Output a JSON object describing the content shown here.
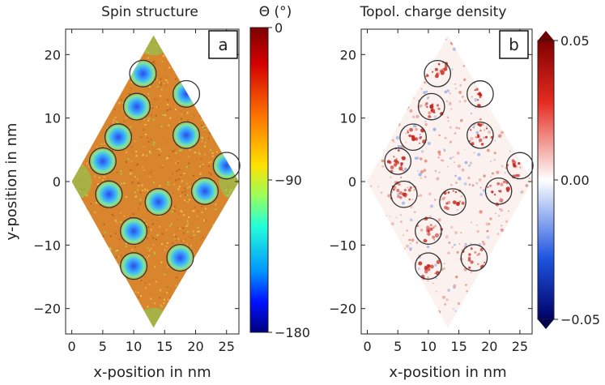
{
  "chart_data": [
    {
      "type": "heatmap",
      "panel_label": "a",
      "title": "Spin structure",
      "colorbar_title": "Θ (°)",
      "xlabel": "x-position in nm",
      "ylabel": "y-position in nm",
      "xlim": [
        -1,
        27
      ],
      "ylim": [
        -24,
        24
      ],
      "xticks": [
        0,
        5,
        10,
        15,
        20,
        25
      ],
      "yticks": [
        -20,
        -10,
        0,
        10,
        20
      ],
      "colorbar": {
        "min": -180,
        "max": 0,
        "ticks": [
          0,
          -90,
          -180
        ],
        "tick_labels": [
          "0",
          "−90",
          "−180"
        ],
        "colormap": "jet"
      },
      "rhombus_vertices": [
        [
          13.2,
          23
        ],
        [
          27,
          0
        ],
        [
          13.2,
          -23
        ],
        [
          0,
          0
        ]
      ],
      "skyrmion_centers": [
        [
          11.5,
          17
        ],
        [
          18.5,
          13.8
        ],
        [
          10.5,
          11.8
        ],
        [
          7.5,
          7
        ],
        [
          18.5,
          7.3
        ],
        [
          5,
          3.2
        ],
        [
          25,
          2.5
        ],
        [
          6,
          -2
        ],
        [
          14,
          -3.2
        ],
        [
          21.5,
          -1.5
        ],
        [
          10,
          -7.8
        ],
        [
          17.5,
          -12
        ],
        [
          10,
          -13.3
        ]
      ],
      "background_value": -45,
      "core_value": -170
    },
    {
      "type": "heatmap",
      "panel_label": "b",
      "title": "Topol. charge density",
      "xlabel": "x-position in nm",
      "ylabel": "",
      "xlim": [
        -1,
        27
      ],
      "ylim": [
        -24,
        24
      ],
      "xticks": [
        0,
        5,
        10,
        15,
        20,
        25
      ],
      "yticks": [
        -20,
        -10,
        0,
        10,
        20
      ],
      "colorbar": {
        "min": -0.05,
        "max": 0.05,
        "ticks": [
          0.05,
          0.0,
          -0.05
        ],
        "tick_labels": [
          "0.05",
          "0.00",
          "−0.05"
        ],
        "colormap": "seismic",
        "extend": "both"
      },
      "rhombus_vertices": [
        [
          13.2,
          23
        ],
        [
          27,
          0
        ],
        [
          13.2,
          -23
        ],
        [
          0,
          0
        ]
      ],
      "skyrmion_centers": [
        [
          11.5,
          17
        ],
        [
          18.5,
          13.8
        ],
        [
          10.5,
          11.8
        ],
        [
          7.5,
          7
        ],
        [
          18.5,
          7.3
        ],
        [
          5,
          3.2
        ],
        [
          25,
          2.5
        ],
        [
          6,
          -2
        ],
        [
          14,
          -3.2
        ],
        [
          21.5,
          -1.5
        ],
        [
          10,
          -7.8
        ],
        [
          17.5,
          -12
        ],
        [
          10,
          -13.3
        ]
      ]
    }
  ]
}
